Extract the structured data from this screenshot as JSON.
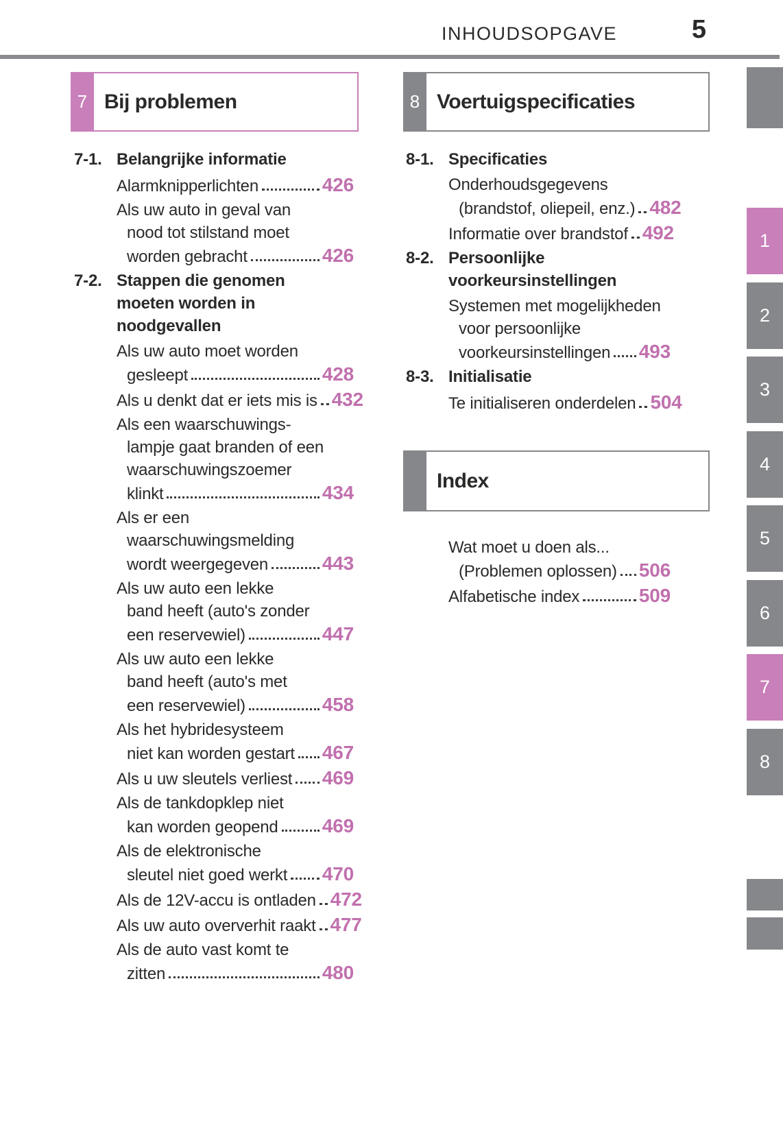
{
  "header": {
    "title": "INHOUDSOPGAVE",
    "page_number": "5"
  },
  "colors": {
    "accent_pink": "#c97fb9",
    "tab_gray": "#85878a",
    "toc_page_number_pink": "#c170ae"
  },
  "chapter_boxes": {
    "left": {
      "number": "7",
      "title": "Bij problemen",
      "color": "pink"
    },
    "right": {
      "number": "8",
      "title": "Voertuigspecificaties",
      "color": "gray"
    },
    "index": {
      "title": "Index",
      "color": "gray"
    }
  },
  "toc_left": {
    "rows": [
      {
        "type": "head",
        "num": "7-1.",
        "text": "Belangrijke informatie"
      },
      {
        "type": "item",
        "text": "Alarmknipperlichten",
        "page": "426"
      },
      {
        "type": "item",
        "text": "Als uw auto in geval van"
      },
      {
        "type": "cont",
        "text": "nood tot stilstand moet"
      },
      {
        "type": "cont",
        "text": "worden gebracht",
        "page": "426"
      },
      {
        "type": "head",
        "num": "7-2.",
        "text": "Stappen die genomen"
      },
      {
        "type": "headcont",
        "text": "moeten worden in"
      },
      {
        "type": "headcont",
        "text": "noodgevallen"
      },
      {
        "type": "item",
        "text": "Als uw auto moet worden"
      },
      {
        "type": "cont",
        "text": "gesleept",
        "page": "428"
      },
      {
        "type": "item",
        "text": "Als u denkt dat er iets mis is",
        "page": "432"
      },
      {
        "type": "item",
        "text": "Als een waarschuwings-"
      },
      {
        "type": "cont",
        "text": "lampje gaat branden of een"
      },
      {
        "type": "cont",
        "text": "waarschuwingszoemer"
      },
      {
        "type": "cont",
        "text": "klinkt",
        "page": "434"
      },
      {
        "type": "item",
        "text": "Als er een"
      },
      {
        "type": "cont",
        "text": "waarschuwingsmelding"
      },
      {
        "type": "cont",
        "text": "wordt weergegeven",
        "page": "443"
      },
      {
        "type": "item",
        "text": "Als uw auto een lekke"
      },
      {
        "type": "cont",
        "text": "band heeft (auto's zonder"
      },
      {
        "type": "cont",
        "text": "een reservewiel)",
        "page": "447"
      },
      {
        "type": "item",
        "text": "Als uw auto een lekke"
      },
      {
        "type": "cont",
        "text": "band heeft (auto's met"
      },
      {
        "type": "cont",
        "text": "een reservewiel)",
        "page": "458"
      },
      {
        "type": "item",
        "text": "Als het hybridesysteem"
      },
      {
        "type": "cont",
        "text": "niet kan worden gestart",
        "page": "467"
      },
      {
        "type": "item",
        "text": "Als u uw sleutels verliest",
        "page": "469"
      },
      {
        "type": "item",
        "text": "Als de tankdopklep niet"
      },
      {
        "type": "cont",
        "text": "kan worden geopend",
        "page": "469"
      },
      {
        "type": "item",
        "text": "Als de elektronische"
      },
      {
        "type": "cont",
        "text": "sleutel niet goed werkt",
        "page": "470"
      },
      {
        "type": "item",
        "text": "Als de 12V-accu is ontladen",
        "page": "472"
      },
      {
        "type": "item",
        "text": "Als uw auto oververhit raakt",
        "page": "477"
      },
      {
        "type": "item",
        "text": "Als de auto vast komt te"
      },
      {
        "type": "cont",
        "text": "zitten",
        "page": "480"
      }
    ]
  },
  "toc_right": {
    "rows": [
      {
        "type": "head",
        "num": "8-1.",
        "text": "Specificaties"
      },
      {
        "type": "item",
        "text": "Onderhoudsgegevens"
      },
      {
        "type": "cont",
        "text": "(brandstof, oliepeil, enz.)",
        "page": "482"
      },
      {
        "type": "item",
        "text": "Informatie over brandstof",
        "page": "492"
      },
      {
        "type": "head",
        "num": "8-2.",
        "text": "Persoonlijke"
      },
      {
        "type": "headcont",
        "text": "voorkeursinstellingen"
      },
      {
        "type": "item",
        "text": "Systemen met mogelijkheden"
      },
      {
        "type": "cont",
        "text": "voor persoonlijke"
      },
      {
        "type": "cont",
        "text": "voorkeursinstellingen",
        "page": "493"
      },
      {
        "type": "head",
        "num": "8-3.",
        "text": "Initialisatie"
      },
      {
        "type": "item",
        "text": "Te initialiseren onderdelen",
        "page": "504"
      }
    ]
  },
  "toc_index": {
    "rows": [
      {
        "type": "item",
        "text": "Wat moet u doen als..."
      },
      {
        "type": "cont",
        "text": "(Problemen oplossen)",
        "page": "506"
      },
      {
        "type": "item",
        "text": "Alfabetische index",
        "page": "509"
      }
    ]
  },
  "side_tabs": {
    "items": [
      {
        "label": "",
        "kind": "blank"
      },
      {
        "label": "1",
        "active": true
      },
      {
        "label": "2",
        "active": false
      },
      {
        "label": "3",
        "active": false
      },
      {
        "label": "4",
        "active": false
      },
      {
        "label": "5",
        "active": false
      },
      {
        "label": "6",
        "active": false
      },
      {
        "label": "7",
        "active": true
      },
      {
        "label": "8",
        "active": false
      },
      {
        "label": "",
        "kind": "blank"
      },
      {
        "label": "",
        "kind": "blank"
      }
    ]
  }
}
